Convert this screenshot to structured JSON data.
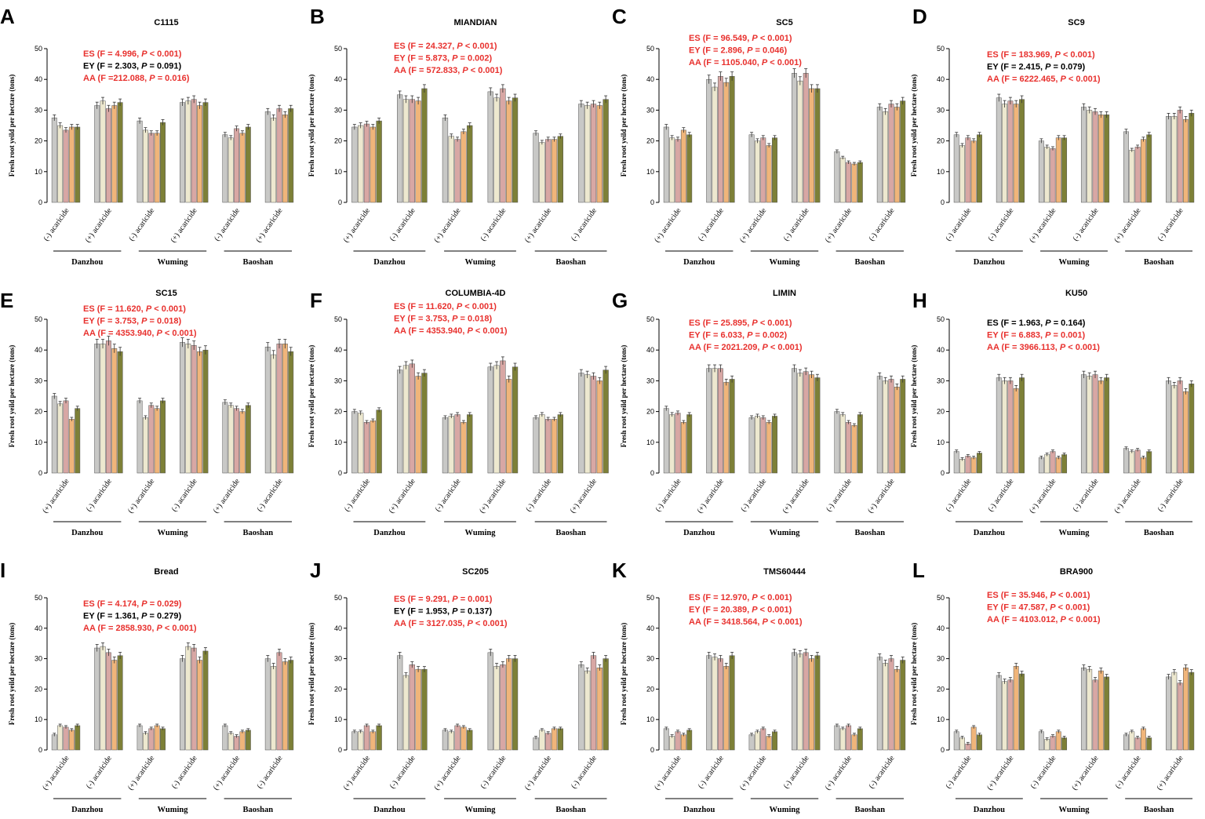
{
  "figure": {
    "y_axis_label": "Fresh root yeild per hectare (tons)",
    "palette": [
      "#c8c8c6",
      "#ede8cf",
      "#d8a7a4",
      "#f0b57a",
      "#7d8037"
    ]
  },
  "chart_data": [
    {
      "panel": "A",
      "title": "C1115",
      "type": "bar",
      "ylim": [
        0,
        50
      ],
      "yticks": [
        0,
        10,
        20,
        30,
        40,
        50
      ],
      "categories": [
        "(-) acaricide",
        "(+) acaricide",
        "(-) acaricide",
        "(+) acaricide",
        "(-) acaricide",
        "(+) acaricide"
      ],
      "groups": [
        "Danzhou",
        "Wuming",
        "Baoshan"
      ],
      "values": [
        [
          27.5,
          25,
          23.5,
          24.5,
          24.5
        ],
        [
          31.5,
          33,
          30.5,
          31.5,
          32.5
        ],
        [
          26.5,
          23.5,
          22.5,
          22.5,
          26
        ],
        [
          32.5,
          33,
          33.5,
          31.5,
          32.5
        ],
        [
          22,
          21,
          24,
          22.5,
          24.5
        ],
        [
          29.5,
          27.5,
          30.5,
          28.5,
          30.5
        ]
      ],
      "stats": [
        {
          "text": "ES (F = 4.996, P < 0.001)",
          "color": "#e8312e"
        },
        {
          "text": "EY (F = 2.303, P = 0.091)",
          "color": "#000000"
        },
        {
          "text": "AA (F =212.088, P = 0.016)",
          "color": "#e8312e"
        }
      ]
    },
    {
      "panel": "B",
      "title": "MIANDIAN",
      "type": "bar",
      "ylim": [
        0,
        50
      ],
      "yticks": [
        0,
        10,
        20,
        30,
        40,
        50
      ],
      "categories": [
        "(+) acaricide",
        "(-) acaricide",
        "(+) acaricide",
        "(-) acaricide",
        "(+) acaricide",
        "(-) acaricide"
      ],
      "groups": [
        "Danzhou",
        "Wuming",
        "Baoshan"
      ],
      "values": [
        [
          24.5,
          25,
          25.5,
          24.5,
          26.5
        ],
        [
          35,
          33.5,
          33.5,
          33,
          37
        ],
        [
          27.5,
          21.5,
          20.5,
          23,
          25
        ],
        [
          36,
          34,
          37,
          33,
          34
        ],
        [
          22.5,
          19.5,
          20.5,
          20.5,
          21.5
        ],
        [
          32,
          31.5,
          32,
          31.5,
          33.5
        ]
      ],
      "stats": [
        {
          "text": "ES (F = 24.327, P < 0.001)",
          "color": "#e8312e"
        },
        {
          "text": "EY (F = 5.873, P = 0.002)",
          "color": "#e8312e"
        },
        {
          "text": "AA (F = 572.833, P < 0.001)",
          "color": "#e8312e"
        }
      ]
    },
    {
      "panel": "C",
      "title": "SC5",
      "type": "bar",
      "ylim": [
        0,
        50
      ],
      "yticks": [
        0,
        10,
        20,
        30,
        40,
        50
      ],
      "categories": [
        "(+) acaricide",
        "(-) acaricide",
        "(+) acaricide",
        "(-) acaricide",
        "(+) acaricide",
        "(-) acaricide"
      ],
      "groups": [
        "Danzhou",
        "Wuming",
        "Baoshan"
      ],
      "values": [
        [
          24.5,
          21,
          20.5,
          23.5,
          22
        ],
        [
          40,
          37.5,
          41,
          39,
          41
        ],
        [
          22,
          20,
          21,
          18.5,
          21
        ],
        [
          42,
          39.5,
          42,
          37,
          37
        ],
        [
          16.5,
          14.5,
          13,
          12.5,
          13
        ],
        [
          31,
          29.5,
          32,
          31,
          33
        ]
      ],
      "stats": [
        {
          "text": "ES (F = 96.549, P < 0.001)",
          "color": "#e8312e"
        },
        {
          "text": "EY (F = 2.896, P = 0.046)",
          "color": "#e8312e"
        },
        {
          "text": "AA (F = 1105.040, P < 0.001)",
          "color": "#e8312e"
        }
      ]
    },
    {
      "panel": "D",
      "title": "SC9",
      "type": "bar",
      "ylim": [
        0,
        50
      ],
      "yticks": [
        0,
        10,
        20,
        30,
        40,
        50
      ],
      "categories": [
        "(-) acaricide",
        "(-) acaricide",
        "(+) acaricide",
        "(-) acaricide",
        "(+) acaricide",
        "(-) acaricide"
      ],
      "groups": [
        "Danzhou",
        "Wuming",
        "Baoshan"
      ],
      "values": [
        [
          22,
          18.5,
          21,
          20,
          22
        ],
        [
          34,
          32,
          33,
          32,
          33.5
        ],
        [
          20,
          18,
          17.5,
          21,
          21
        ],
        [
          31,
          30,
          29.5,
          28.5,
          28.5
        ],
        [
          23,
          17,
          18,
          20.5,
          22
        ],
        [
          28,
          28,
          30,
          27,
          29
        ]
      ],
      "stats": [
        {
          "text": "ES (F = 183.969, P < 0.001)",
          "color": "#e8312e"
        },
        {
          "text": "EY (F = 2.415, P = 0.079)",
          "color": "#000000"
        },
        {
          "text": "AA (F = 6222.465, P < 0.001)",
          "color": "#e8312e"
        }
      ]
    },
    {
      "panel": "E",
      "title": "SC15",
      "type": "bar",
      "ylim": [
        0,
        50
      ],
      "yticks": [
        0,
        10,
        20,
        30,
        40,
        50
      ],
      "categories": [
        "(+) acaricide",
        "(-) acaricide",
        "(+) acaricide",
        "(-) acaricide",
        "(+) acaricide",
        "(-) acaricide"
      ],
      "groups": [
        "Danzhou",
        "Wuming",
        "Baoshan"
      ],
      "values": [
        [
          25,
          22.5,
          23.5,
          17.5,
          21
        ],
        [
          42,
          42,
          43,
          40.5,
          39.5
        ],
        [
          23.5,
          18,
          22,
          21,
          23.5
        ],
        [
          42.5,
          42,
          41.5,
          39.5,
          40
        ],
        [
          23,
          22,
          21,
          20,
          22
        ],
        [
          41,
          38.5,
          42,
          42,
          39.5
        ]
      ],
      "stats": [
        {
          "text": "ES (F = 11.620, P < 0.001)",
          "color": "#e8312e"
        },
        {
          "text": "EY (F = 3.753, P = 0.018)",
          "color": "#e8312e"
        },
        {
          "text": "AA (F = 4353.940, P < 0.001)",
          "color": "#e8312e"
        }
      ]
    },
    {
      "panel": "F",
      "title": "COLUMBIA-4D",
      "type": "bar",
      "ylim": [
        0,
        50
      ],
      "yticks": [
        0,
        10,
        20,
        30,
        40,
        50
      ],
      "categories": [
        "(-) acaricide",
        "(+) acaricide",
        "(-) acaricide",
        "(+) acaricide",
        "(-) acaricide",
        "(+) acaricide"
      ],
      "groups": [
        "Danzhou",
        "Wuming",
        "Baoshan"
      ],
      "values": [
        [
          20,
          19.5,
          16.5,
          17,
          20.5
        ],
        [
          33.5,
          35,
          35.5,
          31.5,
          32.5
        ],
        [
          18,
          18.5,
          19,
          16.5,
          19
        ],
        [
          34.5,
          35,
          36.5,
          30.5,
          34.5
        ],
        [
          18,
          19,
          17.5,
          17.5,
          19
        ],
        [
          32.5,
          32,
          31.5,
          30,
          33.5
        ]
      ],
      "stats": [
        {
          "text": "ES (F = 11.620, P < 0.001)",
          "color": "#e8312e"
        },
        {
          "text": "EY (F = 3.753, P = 0.018)",
          "color": "#e8312e"
        },
        {
          "text": "AA (F = 4353.940, P < 0.001)",
          "color": "#e8312e"
        }
      ]
    },
    {
      "panel": "G",
      "title": "LIMIN",
      "type": "bar",
      "ylim": [
        0,
        50
      ],
      "yticks": [
        0,
        10,
        20,
        30,
        40,
        50
      ],
      "categories": [
        "(-) acaricide",
        "(+) acaricide",
        "(-) acaricide",
        "(+) acaricide",
        "(-) acaricide",
        "(+) acaricide"
      ],
      "groups": [
        "Danzhou",
        "Wuming",
        "Baoshan"
      ],
      "values": [
        [
          21,
          19,
          19.5,
          16.5,
          19
        ],
        [
          34,
          34,
          34,
          29.5,
          30.5
        ],
        [
          18,
          18.5,
          18,
          16.5,
          18.5
        ],
        [
          34,
          32.5,
          33,
          32,
          31
        ],
        [
          20,
          19,
          16.5,
          15.5,
          19
        ],
        [
          31.5,
          30,
          30.5,
          28,
          30.5
        ]
      ],
      "stats": [
        {
          "text": "ES (F = 25.895, P < 0.001)",
          "color": "#e8312e"
        },
        {
          "text": "EY (F = 6.033, P = 0.002)",
          "color": "#e8312e"
        },
        {
          "text": "AA (F = 2021.209, P < 0.001)",
          "color": "#e8312e"
        }
      ]
    },
    {
      "panel": "H",
      "title": "KU50",
      "type": "bar",
      "ylim": [
        0,
        50
      ],
      "yticks": [
        0,
        10,
        20,
        30,
        40,
        50
      ],
      "categories": [
        "(-) acaricide",
        "(-) acaricide",
        "(+) acaricide",
        "(-) acaricide",
        "(+) acaricide",
        "(-) acaricide"
      ],
      "groups": [
        "Danzhou",
        "Wuming",
        "Baoshan"
      ],
      "values": [
        [
          7,
          4.5,
          5.5,
          5,
          6.5
        ],
        [
          31,
          30,
          30,
          27.5,
          31
        ],
        [
          5,
          6,
          7,
          5,
          6
        ],
        [
          32,
          31.5,
          32,
          30,
          31
        ],
        [
          8,
          7,
          7.5,
          5,
          7
        ],
        [
          30,
          28.5,
          30,
          26.5,
          29
        ]
      ],
      "stats": [
        {
          "text": "ES (F = 1.963, P = 0.164)",
          "color": "#000000"
        },
        {
          "text": "EY (F = 6.883, P = 0.001)",
          "color": "#e8312e"
        },
        {
          "text": "AA (F = 3966.113, P < 0.001)",
          "color": "#e8312e"
        }
      ]
    },
    {
      "panel": "I",
      "title": "Bread",
      "type": "bar",
      "ylim": [
        0,
        50
      ],
      "yticks": [
        0,
        10,
        20,
        30,
        40,
        50
      ],
      "categories": [
        "(+) acaricide",
        "(-) acaricide",
        "(+) acaricide",
        "(-) acaricide",
        "(+) acaricide",
        "(-) acaricide"
      ],
      "groups": [
        "Danzhou",
        "Wuming",
        "Baoshan"
      ],
      "values": [
        [
          5,
          8,
          7.5,
          6.5,
          8
        ],
        [
          33.5,
          34,
          32,
          29.5,
          31
        ],
        [
          8,
          5.5,
          7,
          8,
          7
        ],
        [
          30,
          34,
          33.5,
          29.5,
          32.5
        ],
        [
          8,
          5.5,
          4.5,
          6,
          6.5
        ],
        [
          30,
          27.5,
          32,
          29,
          29.5
        ]
      ],
      "stats": [
        {
          "text": "ES (F = 4.174, P = 0.029)",
          "color": "#e8312e"
        },
        {
          "text": "EY (F = 1.361, P = 0.279)",
          "color": "#000000"
        },
        {
          "text": "AA (F = 2858.930, P < 0.001)",
          "color": "#e8312e"
        }
      ]
    },
    {
      "panel": "J",
      "title": "SC205",
      "type": "bar",
      "ylim": [
        0,
        50
      ],
      "yticks": [
        0,
        10,
        20,
        30,
        40,
        50
      ],
      "categories": [
        "(+) acaricide",
        "(-) acaricide",
        "(+) acaricide",
        "(-) acaricide",
        "(+) acaricide",
        "(-) acaricide"
      ],
      "groups": [
        "Danzhou",
        "Wuming",
        "Baoshan"
      ],
      "values": [
        [
          6,
          6,
          8,
          6,
          8
        ],
        [
          31,
          24.5,
          28,
          26.5,
          26.5
        ],
        [
          6.5,
          6,
          8,
          7.5,
          6.5
        ],
        [
          32,
          27.5,
          28,
          30,
          30
        ],
        [
          4,
          6.5,
          5.5,
          7,
          7
        ],
        [
          28,
          26,
          31,
          27,
          30
        ]
      ],
      "stats": [
        {
          "text": "ES (F = 9.291, P = 0.001)",
          "color": "#e8312e"
        },
        {
          "text": "EY (F = 1.953, P = 0.137)",
          "color": "#000000"
        },
        {
          "text": "AA (F = 3127.035, P < 0.001)",
          "color": "#e8312e"
        }
      ]
    },
    {
      "panel": "K",
      "title": "TMS60444",
      "type": "bar",
      "ylim": [
        0,
        50
      ],
      "yticks": [
        0,
        10,
        20,
        30,
        40,
        50
      ],
      "categories": [
        "(+) acaricide",
        "(-) acaricide",
        "(+) acaricide",
        "(-) acaricide",
        "(+) acaricide",
        "(-) acaricide"
      ],
      "groups": [
        "Danzhou",
        "Wuming",
        "Baoshan"
      ],
      "values": [
        [
          7,
          4.5,
          6,
          5,
          6.5
        ],
        [
          31,
          30.5,
          30,
          27.5,
          31
        ],
        [
          5,
          6,
          7,
          4.5,
          6
        ],
        [
          32,
          31.5,
          32,
          30,
          31
        ],
        [
          8,
          7,
          8,
          5,
          7
        ],
        [
          30.5,
          28.5,
          30,
          26.5,
          29.5
        ]
      ],
      "stats": [
        {
          "text": "ES (F = 12.970, P < 0.001)",
          "color": "#e8312e"
        },
        {
          "text": "EY (F = 20.389, P < 0.001)",
          "color": "#e8312e"
        },
        {
          "text": "AA (F = 3418.564, P < 0.001)",
          "color": "#e8312e"
        }
      ]
    },
    {
      "panel": "L",
      "title": "BRA900",
      "type": "bar",
      "ylim": [
        0,
        50
      ],
      "yticks": [
        0,
        10,
        20,
        30,
        40,
        50
      ],
      "categories": [
        "(-) acaricide",
        "(+) acaricide",
        "(-) acaricide",
        "(+) acaricide",
        "(-) acaricide",
        "(+) acaricide"
      ],
      "groups": [
        "Danzhou",
        "Wuming",
        "Baoshan"
      ],
      "values": [
        [
          6,
          4,
          2,
          7.5,
          5
        ],
        [
          24.5,
          22.5,
          23,
          27.5,
          25
        ],
        [
          6,
          3.5,
          4.5,
          6,
          4
        ],
        [
          27,
          26.5,
          23,
          26,
          24
        ],
        [
          5,
          6,
          4,
          7,
          4
        ],
        [
          24,
          25.5,
          22,
          27,
          25.5
        ]
      ],
      "stats": [
        {
          "text": "ES (F = 35.946, P < 0.001)",
          "color": "#e8312e"
        },
        {
          "text": "EY (F = 47.587, P < 0.001)",
          "color": "#e8312e"
        },
        {
          "text": "AA (F = 4103.012, P < 0.001)",
          "color": "#e8312e"
        }
      ]
    }
  ]
}
